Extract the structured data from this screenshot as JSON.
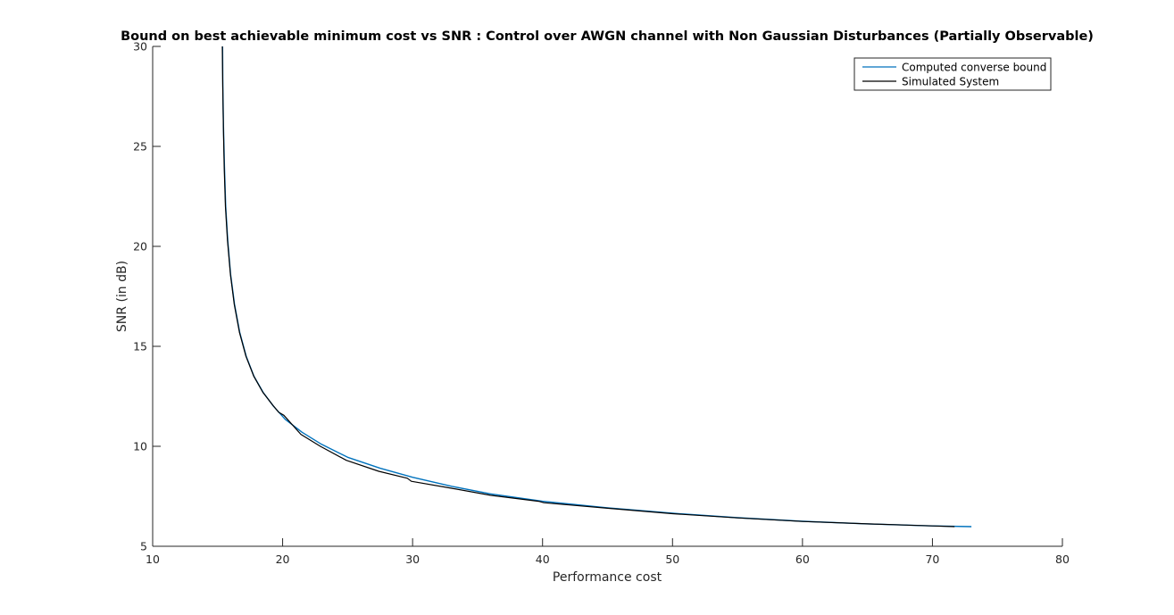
{
  "chart_data": {
    "type": "line",
    "title": "Bound on best achievable minimum cost vs SNR  : Control over AWGN channel with Non Gaussian Disturbances (Partially Observable)",
    "xlabel": "Performance cost",
    "ylabel": "SNR (in dB)",
    "xlim": [
      10,
      80
    ],
    "ylim": [
      5,
      30
    ],
    "xticks": [
      10,
      20,
      30,
      40,
      50,
      60,
      70,
      80
    ],
    "yticks": [
      5,
      10,
      15,
      20,
      25,
      30
    ],
    "grid": false,
    "legend_position": "top-right",
    "series": [
      {
        "name": "Computed converse bound",
        "color": "#0072BD",
        "x": [
          15.38,
          15.4,
          15.45,
          15.52,
          15.62,
          15.78,
          16.0,
          16.3,
          16.7,
          17.2,
          17.8,
          18.5,
          19.3,
          20.2,
          21.5,
          23.0,
          25.0,
          27.5,
          30.0,
          33.0,
          36.0,
          40.0,
          45.0,
          50.0,
          55.0,
          60.0,
          65.0,
          70.0,
          73.0
        ],
        "y": [
          30.0,
          28.0,
          26.0,
          24.0,
          22.0,
          20.3,
          18.6,
          17.1,
          15.7,
          14.5,
          13.5,
          12.7,
          12.0,
          11.35,
          10.7,
          10.1,
          9.45,
          8.9,
          8.45,
          8.0,
          7.62,
          7.25,
          6.92,
          6.65,
          6.43,
          6.25,
          6.12,
          6.02,
          5.98
        ]
      },
      {
        "name": "Simulated System",
        "color": "#000000",
        "x": [
          15.36,
          15.39,
          15.44,
          15.5,
          15.6,
          15.76,
          15.98,
          16.28,
          16.68,
          17.18,
          17.78,
          18.48,
          19.25,
          19.7,
          20.1,
          21.4,
          22.9,
          24.9,
          27.4,
          29.6,
          29.9,
          33.0,
          36.0,
          39.7,
          40.1,
          45.0,
          50.0,
          55.0,
          60.0,
          65.0,
          70.0,
          71.7
        ],
        "y": [
          30.0,
          28.0,
          26.0,
          24.0,
          22.0,
          20.3,
          18.6,
          17.1,
          15.7,
          14.5,
          13.5,
          12.7,
          12.05,
          11.7,
          11.55,
          10.6,
          10.0,
          9.3,
          8.75,
          8.4,
          8.25,
          7.9,
          7.55,
          7.25,
          7.18,
          6.9,
          6.63,
          6.42,
          6.24,
          6.12,
          6.02,
          5.98
        ]
      }
    ]
  }
}
